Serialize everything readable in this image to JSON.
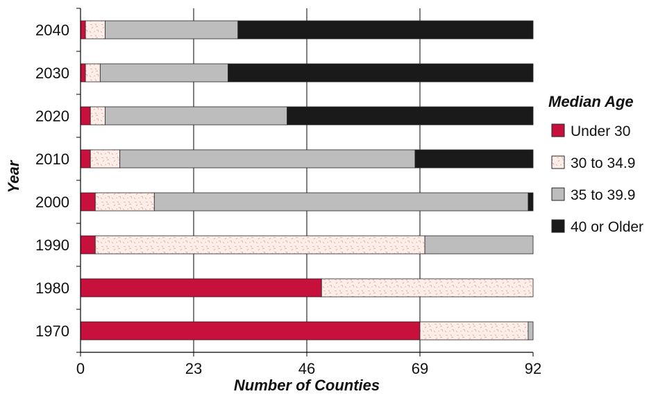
{
  "chart_data": {
    "type": "bar",
    "orientation": "horizontal",
    "stacked": true,
    "categories": [
      "1970",
      "1980",
      "1990",
      "2000",
      "2010",
      "2020",
      "2030",
      "2040"
    ],
    "series": [
      {
        "name": "Under 30",
        "color": "#c8103c",
        "values": [
          69,
          49,
          3,
          3,
          2,
          2,
          1,
          1
        ]
      },
      {
        "name": "30 to 34.9",
        "color": "#fde8e4",
        "pattern": "speckle",
        "values": [
          22,
          43,
          67,
          12,
          6,
          3,
          3,
          4
        ]
      },
      {
        "name": "35 to 39.9",
        "color": "#bdbdbd",
        "values": [
          1,
          0,
          22,
          76,
          60,
          37,
          26,
          27
        ]
      },
      {
        "name": "40 or Older",
        "color": "#1a1a1a",
        "values": [
          0,
          0,
          0,
          1,
          24,
          50,
          62,
          60
        ]
      }
    ],
    "xlabel": "Number of Counties",
    "ylabel": "Year",
    "xlim": [
      0,
      92
    ],
    "xticks": [
      "0",
      "23",
      "46",
      "69",
      "92"
    ],
    "grid": "vertical",
    "legend": {
      "title": "Median Age",
      "placement": "right"
    }
  }
}
